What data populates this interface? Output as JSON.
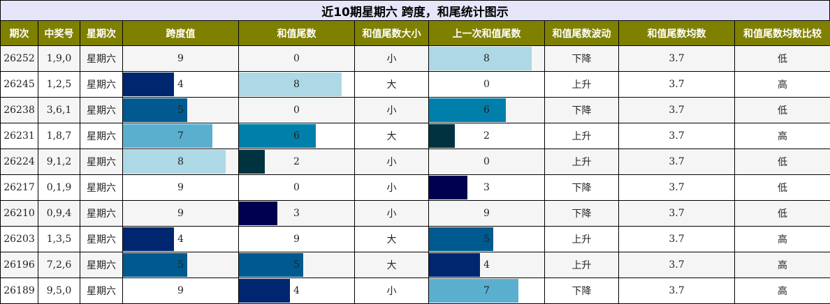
{
  "title": "近10期星期六 跨度，和尾统计图示",
  "headers": [
    "期次",
    "中奖号",
    "星期次",
    "跨度值",
    "和值尾数",
    "和值尾数大小",
    "上一次和值尾数",
    "和值尾数波动",
    "和值尾数均数",
    "和值尾数均数比较"
  ],
  "colors": {
    "header_bg": "#808000",
    "title_bg": "#e6e6fa",
    "bar_palette": {
      "1": "#000050",
      "2": "#00323f",
      "3": "#000050",
      "4": "#00266f",
      "5": "#005a8f",
      "6": "#007fab",
      "7": "#5aafcf",
      "8": "#add8e6"
    }
  },
  "rows": [
    {
      "period": "26252",
      "numbers": "1,9,0",
      "weekday": "星期六",
      "span": "9",
      "tail": "0",
      "size": "小",
      "prev_tail": "8",
      "trend": "下降",
      "avg": "3.7",
      "compare": "低"
    },
    {
      "period": "26245",
      "numbers": "1,2,5",
      "weekday": "星期六",
      "span": "4",
      "tail": "8",
      "size": "大",
      "prev_tail": "0",
      "trend": "上升",
      "avg": "3.7",
      "compare": "高"
    },
    {
      "period": "26238",
      "numbers": "3,6,1",
      "weekday": "星期六",
      "span": "5",
      "tail": "0",
      "size": "小",
      "prev_tail": "6",
      "trend": "下降",
      "avg": "3.7",
      "compare": "低"
    },
    {
      "period": "26231",
      "numbers": "1,8,7",
      "weekday": "星期六",
      "span": "7",
      "tail": "6",
      "size": "大",
      "prev_tail": "2",
      "trend": "上升",
      "avg": "3.7",
      "compare": "高"
    },
    {
      "period": "26224",
      "numbers": "9,1,2",
      "weekday": "星期六",
      "span": "8",
      "tail": "2",
      "size": "小",
      "prev_tail": "0",
      "trend": "上升",
      "avg": "3.7",
      "compare": "低"
    },
    {
      "period": "26217",
      "numbers": "0,1,9",
      "weekday": "星期六",
      "span": "9",
      "tail": "0",
      "size": "小",
      "prev_tail": "3",
      "trend": "下降",
      "avg": "3.7",
      "compare": "低"
    },
    {
      "period": "26210",
      "numbers": "0,9,4",
      "weekday": "星期六",
      "span": "9",
      "tail": "3",
      "size": "小",
      "prev_tail": "9",
      "trend": "下降",
      "avg": "3.7",
      "compare": "低"
    },
    {
      "period": "26203",
      "numbers": "1,3,5",
      "weekday": "星期六",
      "span": "4",
      "tail": "9",
      "size": "大",
      "prev_tail": "5",
      "trend": "上升",
      "avg": "3.7",
      "compare": "高"
    },
    {
      "period": "26196",
      "numbers": "7,2,6",
      "weekday": "星期六",
      "span": "5",
      "tail": "5",
      "size": "大",
      "prev_tail": "4",
      "trend": "上升",
      "avg": "3.7",
      "compare": "高"
    },
    {
      "period": "26189",
      "numbers": "9,5,0",
      "weekday": "星期六",
      "span": "9",
      "tail": "4",
      "size": "小",
      "prev_tail": "7",
      "trend": "下降",
      "avg": "3.7",
      "compare": "高"
    }
  ]
}
